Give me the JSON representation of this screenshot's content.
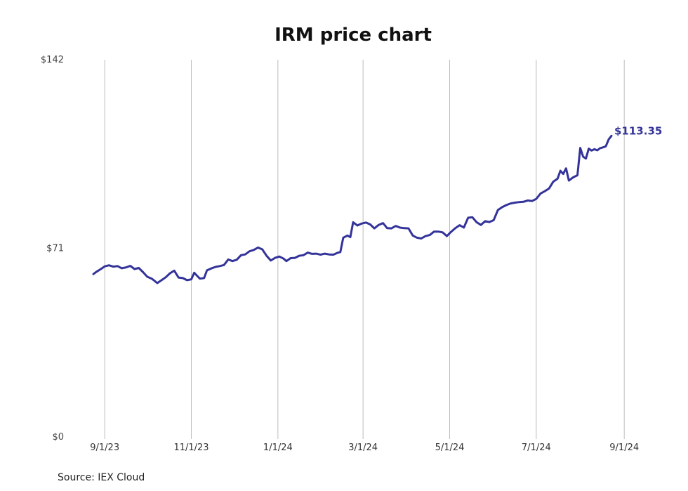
{
  "chart_data": {
    "type": "line",
    "title": "IRM price chart",
    "xlabel": "",
    "ylabel": "",
    "y_ticks": [
      "$0",
      "$71",
      "$142"
    ],
    "y_tick_values": [
      0,
      71,
      142
    ],
    "ylim": [
      0,
      142
    ],
    "x_ticks": [
      "9/1/23",
      "11/1/23",
      "1/1/24",
      "3/1/24",
      "5/1/24",
      "7/1/24",
      "9/1/24"
    ],
    "x_tick_dates": [
      "2023-09-01",
      "2023-11-01",
      "2024-01-01",
      "2024-03-01",
      "2024-05-01",
      "2024-07-01",
      "2024-09-01"
    ],
    "xlim": [
      "2023-08-24",
      "2024-08-23"
    ],
    "grid": "vertical",
    "color": "#33339a",
    "end_label": "$113.35",
    "source": "Source: IEX Cloud",
    "series": [
      {
        "points": [
          [
            "2023-08-24",
            61.3
          ],
          [
            "2023-08-26",
            62.1
          ],
          [
            "2023-08-29",
            63.1
          ],
          [
            "2023-09-01",
            64.2
          ],
          [
            "2023-09-04",
            64.6
          ],
          [
            "2023-09-07",
            64.1
          ],
          [
            "2023-09-10",
            64.3
          ],
          [
            "2023-09-13",
            63.5
          ],
          [
            "2023-09-16",
            63.8
          ],
          [
            "2023-09-19",
            64.4
          ],
          [
            "2023-09-22",
            63.2
          ],
          [
            "2023-09-25",
            63.6
          ],
          [
            "2023-09-28",
            62.0
          ],
          [
            "2023-10-01",
            60.3
          ],
          [
            "2023-10-04",
            59.6
          ],
          [
            "2023-10-06",
            58.8
          ],
          [
            "2023-10-08",
            57.9
          ],
          [
            "2023-10-11",
            59.0
          ],
          [
            "2023-10-14",
            60.1
          ],
          [
            "2023-10-17",
            61.6
          ],
          [
            "2023-10-20",
            62.6
          ],
          [
            "2023-10-23",
            60.0
          ],
          [
            "2023-10-26",
            59.8
          ],
          [
            "2023-10-29",
            59.0
          ],
          [
            "2023-11-01",
            59.3
          ],
          [
            "2023-11-03",
            61.8
          ],
          [
            "2023-11-05",
            60.7
          ],
          [
            "2023-11-07",
            59.6
          ],
          [
            "2023-11-10",
            59.8
          ],
          [
            "2023-11-12",
            62.7
          ],
          [
            "2023-11-15",
            63.4
          ],
          [
            "2023-11-18",
            64.0
          ],
          [
            "2023-11-21",
            64.3
          ],
          [
            "2023-11-24",
            64.7
          ],
          [
            "2023-11-27",
            66.8
          ],
          [
            "2023-11-30",
            66.2
          ],
          [
            "2023-12-03",
            66.7
          ],
          [
            "2023-12-06",
            68.4
          ],
          [
            "2023-12-09",
            68.7
          ],
          [
            "2023-12-12",
            69.9
          ],
          [
            "2023-12-15",
            70.4
          ],
          [
            "2023-12-18",
            71.3
          ],
          [
            "2023-12-21",
            70.6
          ],
          [
            "2023-12-24",
            68.2
          ],
          [
            "2023-12-27",
            66.4
          ],
          [
            "2023-12-30",
            67.4
          ],
          [
            "2024-01-02",
            67.9
          ],
          [
            "2024-01-05",
            67.1
          ],
          [
            "2024-01-07",
            66.2
          ],
          [
            "2024-01-10",
            67.3
          ],
          [
            "2024-01-13",
            67.4
          ],
          [
            "2024-01-16",
            68.2
          ],
          [
            "2024-01-19",
            68.4
          ],
          [
            "2024-01-22",
            69.4
          ],
          [
            "2024-01-25",
            68.9
          ],
          [
            "2024-01-28",
            69.0
          ],
          [
            "2024-01-31",
            68.6
          ],
          [
            "2024-02-03",
            69.0
          ],
          [
            "2024-02-06",
            68.7
          ],
          [
            "2024-02-09",
            68.6
          ],
          [
            "2024-02-12",
            69.3
          ],
          [
            "2024-02-14",
            69.6
          ],
          [
            "2024-02-16",
            75.0
          ],
          [
            "2024-02-19",
            75.8
          ],
          [
            "2024-02-21",
            75.2
          ],
          [
            "2024-02-23",
            80.8
          ],
          [
            "2024-02-26",
            79.6
          ],
          [
            "2024-02-29",
            80.3
          ],
          [
            "2024-03-03",
            80.7
          ],
          [
            "2024-03-06",
            80.0
          ],
          [
            "2024-03-09",
            78.5
          ],
          [
            "2024-03-12",
            79.8
          ],
          [
            "2024-03-15",
            80.5
          ],
          [
            "2024-03-18",
            78.6
          ],
          [
            "2024-03-21",
            78.5
          ],
          [
            "2024-03-24",
            79.4
          ],
          [
            "2024-03-27",
            78.8
          ],
          [
            "2024-03-30",
            78.6
          ],
          [
            "2024-04-02",
            78.5
          ],
          [
            "2024-04-05",
            75.8
          ],
          [
            "2024-04-08",
            75.0
          ],
          [
            "2024-04-11",
            74.7
          ],
          [
            "2024-04-14",
            75.6
          ],
          [
            "2024-04-17",
            76.0
          ],
          [
            "2024-04-20",
            77.3
          ],
          [
            "2024-04-23",
            77.3
          ],
          [
            "2024-04-26",
            77.0
          ],
          [
            "2024-04-29",
            75.6
          ],
          [
            "2024-05-02",
            77.2
          ],
          [
            "2024-05-05",
            78.6
          ],
          [
            "2024-05-08",
            79.7
          ],
          [
            "2024-05-11",
            78.8
          ],
          [
            "2024-05-14",
            82.5
          ],
          [
            "2024-05-17",
            82.7
          ],
          [
            "2024-05-20",
            80.8
          ],
          [
            "2024-05-23",
            79.8
          ],
          [
            "2024-05-26",
            81.2
          ],
          [
            "2024-05-29",
            80.9
          ],
          [
            "2024-06-01",
            81.6
          ],
          [
            "2024-06-04",
            85.4
          ],
          [
            "2024-06-07",
            86.5
          ],
          [
            "2024-06-10",
            87.3
          ],
          [
            "2024-06-13",
            87.9
          ],
          [
            "2024-06-16",
            88.2
          ],
          [
            "2024-06-19",
            88.4
          ],
          [
            "2024-06-22",
            88.5
          ],
          [
            "2024-06-25",
            89.0
          ],
          [
            "2024-06-28",
            88.8
          ],
          [
            "2024-07-01",
            89.6
          ],
          [
            "2024-07-04",
            91.6
          ],
          [
            "2024-07-07",
            92.5
          ],
          [
            "2024-07-10",
            93.5
          ],
          [
            "2024-07-13",
            96.1
          ],
          [
            "2024-07-16",
            97.2
          ],
          [
            "2024-07-18",
            100.2
          ],
          [
            "2024-07-20",
            99.0
          ],
          [
            "2024-07-22",
            101.1
          ],
          [
            "2024-07-24",
            96.5
          ],
          [
            "2024-07-27",
            97.7
          ],
          [
            "2024-07-30",
            98.5
          ],
          [
            "2024-08-01",
            108.8
          ],
          [
            "2024-08-03",
            105.5
          ],
          [
            "2024-08-05",
            104.8
          ],
          [
            "2024-08-07",
            108.5
          ],
          [
            "2024-08-09",
            107.8
          ],
          [
            "2024-08-11",
            108.3
          ],
          [
            "2024-08-13",
            107.9
          ],
          [
            "2024-08-15",
            108.7
          ],
          [
            "2024-08-17",
            109.0
          ],
          [
            "2024-08-19",
            109.4
          ],
          [
            "2024-08-21",
            112.0
          ],
          [
            "2024-08-23",
            113.35
          ]
        ]
      }
    ]
  }
}
